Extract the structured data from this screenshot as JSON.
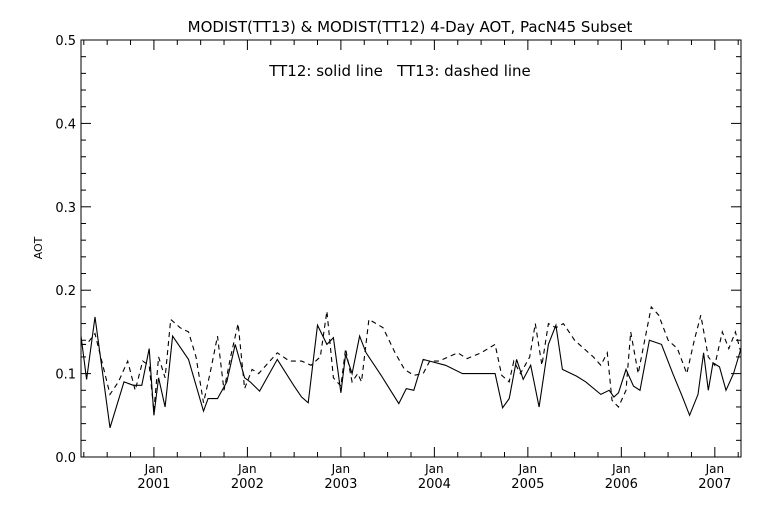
{
  "chart_data": {
    "type": "line",
    "title": "MODIST(TT13) & MODIST(TT12) 4-Day AOT, PacN45 Subset",
    "annotation": "TT12: solid line   TT13: dashed line",
    "ylabel": "AOT",
    "xlabel": "",
    "xlim": [
      2000.22,
      2007.28
    ],
    "ylim": [
      0.0,
      0.5
    ],
    "grid": false,
    "y_ticks": [
      {
        "value": 0.0,
        "label": "0.0"
      },
      {
        "value": 0.1,
        "label": "0.1"
      },
      {
        "value": 0.2,
        "label": "0.2"
      },
      {
        "value": 0.3,
        "label": "0.3"
      },
      {
        "value": 0.4,
        "label": "0.4"
      },
      {
        "value": 0.5,
        "label": "0.5"
      }
    ],
    "x_ticks": [
      {
        "value": 2001.0,
        "month": "Jan",
        "year": "2001"
      },
      {
        "value": 2002.0,
        "month": "Jan",
        "year": "2002"
      },
      {
        "value": 2003.0,
        "month": "Jan",
        "year": "2003"
      },
      {
        "value": 2004.0,
        "month": "Jan",
        "year": "2004"
      },
      {
        "value": 2005.0,
        "month": "Jan",
        "year": "2005"
      },
      {
        "value": 2006.0,
        "month": "Jan",
        "year": "2006"
      },
      {
        "value": 2007.0,
        "month": "Jan",
        "year": "2007"
      }
    ],
    "series": [
      {
        "label": "TT12",
        "style": "solid",
        "color": "#000000",
        "x": [
          2000.22,
          2000.28,
          2000.37,
          2000.53,
          2000.68,
          2000.78,
          2000.87,
          2000.95,
          2001.0,
          2001.05,
          2001.12,
          2001.2,
          2001.37,
          2001.53,
          2001.58,
          2001.68,
          2001.78,
          2001.87,
          2001.97,
          2002.03,
          2002.13,
          2002.32,
          2002.5,
          2002.58,
          2002.65,
          2002.75,
          2002.85,
          2002.92,
          2003.0,
          2003.05,
          2003.12,
          2003.2,
          2003.27,
          2003.43,
          2003.62,
          2003.7,
          2003.78,
          2003.88,
          2003.95,
          2004.12,
          2004.3,
          2004.43,
          2004.55,
          2004.65,
          2004.73,
          2004.8,
          2004.88,
          2004.95,
          2005.03,
          2005.12,
          2005.22,
          2005.3,
          2005.37,
          2005.52,
          2005.62,
          2005.78,
          2005.87,
          2005.92,
          2005.97,
          2006.05,
          2006.13,
          2006.2,
          2006.3,
          2006.43,
          2006.55,
          2006.65,
          2006.73,
          2006.82,
          2006.88,
          2006.93,
          2006.98,
          2007.05,
          2007.12,
          2007.2,
          2007.28
        ],
        "y": [
          0.145,
          0.093,
          0.168,
          0.035,
          0.09,
          0.086,
          0.086,
          0.13,
          0.05,
          0.095,
          0.06,
          0.145,
          0.117,
          0.055,
          0.07,
          0.07,
          0.09,
          0.135,
          0.095,
          0.09,
          0.079,
          0.117,
          0.085,
          0.072,
          0.065,
          0.158,
          0.135,
          0.143,
          0.077,
          0.123,
          0.1,
          0.145,
          0.125,
          0.098,
          0.064,
          0.082,
          0.08,
          0.117,
          0.115,
          0.11,
          0.1,
          0.1,
          0.1,
          0.1,
          0.059,
          0.07,
          0.117,
          0.093,
          0.11,
          0.06,
          0.135,
          0.158,
          0.105,
          0.097,
          0.09,
          0.075,
          0.08,
          0.072,
          0.077,
          0.105,
          0.085,
          0.08,
          0.14,
          0.135,
          0.1,
          0.073,
          0.05,
          0.075,
          0.125,
          0.08,
          0.113,
          0.108,
          0.08,
          0.1,
          0.13
        ]
      },
      {
        "label": "TT13",
        "style": "dashed",
        "color": "#000000",
        "x": [
          2000.22,
          2000.28,
          2000.37,
          2000.53,
          2000.62,
          2000.72,
          2000.8,
          2000.88,
          2000.95,
          2001.0,
          2001.05,
          2001.12,
          2001.18,
          2001.28,
          2001.37,
          2001.45,
          2001.53,
          2001.6,
          2001.68,
          2001.75,
          2001.82,
          2001.9,
          2001.97,
          2002.05,
          2002.12,
          2002.2,
          2002.32,
          2002.45,
          2002.58,
          2002.68,
          2002.78,
          2002.85,
          2002.92,
          2003.0,
          2003.05,
          2003.12,
          2003.18,
          2003.22,
          2003.3,
          2003.45,
          2003.58,
          2003.68,
          2003.78,
          2003.88,
          2003.95,
          2004.05,
          2004.15,
          2004.25,
          2004.35,
          2004.5,
          2004.65,
          2004.72,
          2004.8,
          2004.85,
          2004.92,
          2004.97,
          2005.02,
          2005.08,
          2005.15,
          2005.22,
          2005.3,
          2005.38,
          2005.5,
          2005.6,
          2005.7,
          2005.78,
          2005.85,
          2005.9,
          2005.97,
          2006.05,
          2006.1,
          2006.18,
          2006.25,
          2006.32,
          2006.4,
          2006.5,
          2006.6,
          2006.7,
          2006.78,
          2006.85,
          2006.93,
          2007.0,
          2007.08,
          2007.15,
          2007.22,
          2007.28
        ],
        "y": [
          0.135,
          0.135,
          0.148,
          0.075,
          0.09,
          0.115,
          0.08,
          0.115,
          0.11,
          0.055,
          0.12,
          0.095,
          0.165,
          0.155,
          0.15,
          0.12,
          0.065,
          0.1,
          0.145,
          0.08,
          0.12,
          0.16,
          0.082,
          0.105,
          0.1,
          0.11,
          0.125,
          0.115,
          0.115,
          0.11,
          0.12,
          0.175,
          0.095,
          0.085,
          0.13,
          0.09,
          0.1,
          0.09,
          0.165,
          0.155,
          0.125,
          0.105,
          0.098,
          0.1,
          0.115,
          0.115,
          0.12,
          0.125,
          0.118,
          0.125,
          0.135,
          0.098,
          0.09,
          0.115,
          0.1,
          0.11,
          0.12,
          0.16,
          0.11,
          0.16,
          0.155,
          0.16,
          0.14,
          0.13,
          0.12,
          0.11,
          0.125,
          0.068,
          0.06,
          0.08,
          0.15,
          0.1,
          0.14,
          0.18,
          0.17,
          0.14,
          0.13,
          0.1,
          0.14,
          0.17,
          0.12,
          0.11,
          0.15,
          0.13,
          0.15,
          0.125
        ]
      }
    ]
  }
}
